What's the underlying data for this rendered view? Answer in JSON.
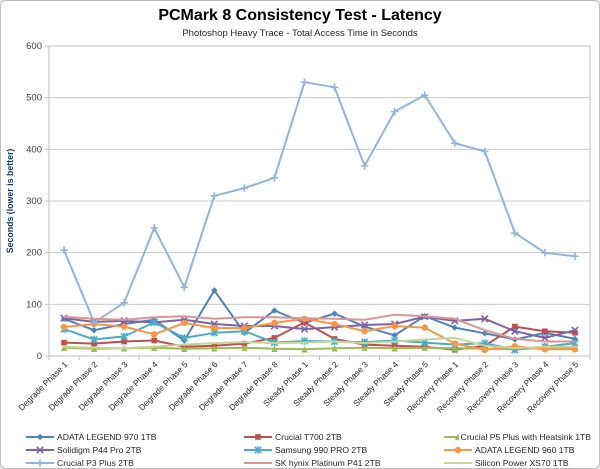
{
  "chart_data": {
    "type": "line",
    "title": "PCMark 8 Consistency Test - Latency",
    "subtitle": "Photoshop Heavy Trace - Total Access Time in Seconds",
    "xlabel": "",
    "ylabel": "Seconds (lower is better)",
    "ylim": [
      0,
      600
    ],
    "yticks": [
      0,
      100,
      200,
      300,
      400,
      500,
      600
    ],
    "grid": true,
    "legend_position": "bottom",
    "categories": [
      "Degrade Phase 1",
      "Degrade Phase 2",
      "Degrade Phase 3",
      "Degrade Phase 4",
      "Degrade Phase 5",
      "Degrade Phase 6",
      "Degrade Phase 7",
      "Degrade Phase 8",
      "Steady Phase 1",
      "Steady Phase 2",
      "Steady Phase 3",
      "Steady Phase 4",
      "Steady Phase 5",
      "Recovery Phase 1",
      "Recovery Phase 2",
      "Recovery Phase 3",
      "Recovery Phase 4",
      "Recovery Phase 5"
    ],
    "series": [
      {
        "name": "ADATA LEGEND 970 1TB",
        "color": "#4F81BD",
        "marker": "diamond",
        "values": [
          72,
          50,
          62,
          70,
          30,
          127,
          45,
          88,
          64,
          82,
          57,
          40,
          77,
          55,
          44,
          32,
          45,
          33
        ]
      },
      {
        "name": "Crucial T700 2TB",
        "color": "#C0504D",
        "marker": "square",
        "values": [
          26,
          24,
          28,
          30,
          18,
          20,
          24,
          35,
          65,
          33,
          22,
          20,
          18,
          12,
          20,
          57,
          48,
          45
        ]
      },
      {
        "name": "Crucial P5 Plus with Heatsink 1TB",
        "color": "#9BBB59",
        "marker": "triangle",
        "values": [
          16,
          14,
          15,
          16,
          14,
          15,
          16,
          14,
          13,
          15,
          16,
          15,
          16,
          15,
          14,
          13,
          16,
          15
        ]
      },
      {
        "name": "Solidigm P44 Pro 2TB",
        "color": "#8064A2",
        "marker": "x",
        "values": [
          73,
          66,
          68,
          65,
          70,
          62,
          58,
          58,
          52,
          56,
          60,
          62,
          76,
          68,
          72,
          48,
          35,
          50
        ]
      },
      {
        "name": "Samsung 990 PRO 2TB",
        "color": "#4BACC6",
        "marker": "asterisk",
        "values": [
          52,
          32,
          38,
          65,
          35,
          45,
          48,
          26,
          29,
          28,
          27,
          30,
          26,
          22,
          25,
          12,
          18,
          25
        ]
      },
      {
        "name": "ADATA LEGEND 960 1TB",
        "color": "#F79646",
        "marker": "circle",
        "values": [
          56,
          62,
          57,
          42,
          64,
          54,
          54,
          64,
          72,
          62,
          48,
          58,
          55,
          24,
          12,
          19,
          13,
          13
        ]
      },
      {
        "name": "Crucial P3 Plus 2TB",
        "color": "#95B3D7",
        "marker": "plus",
        "values": [
          205,
          65,
          103,
          248,
          133,
          310,
          325,
          345,
          530,
          520,
          368,
          473,
          505,
          412,
          396,
          238,
          200,
          193
        ]
      },
      {
        "name": "SK hynix Platinum P41 2TB",
        "color": "#D99694",
        "marker": "none",
        "values": [
          76,
          72,
          70,
          75,
          77,
          72,
          75,
          75,
          73,
          72,
          70,
          80,
          77,
          72,
          50,
          33,
          28,
          28
        ]
      },
      {
        "name": "Silicon Power XS70 1TB",
        "color": "#C3D69B",
        "marker": "none",
        "values": [
          18,
          16,
          15,
          18,
          22,
          25,
          27,
          25,
          26,
          28,
          25,
          28,
          32,
          35,
          20,
          15,
          18,
          18
        ]
      }
    ],
    "style": {
      "grid_color": "#C9C9C9",
      "axis_color": "#BFBFBF",
      "tick_label_color": "#404040",
      "x_label_color": "#262626",
      "ylabel_color": "#17375E"
    }
  }
}
